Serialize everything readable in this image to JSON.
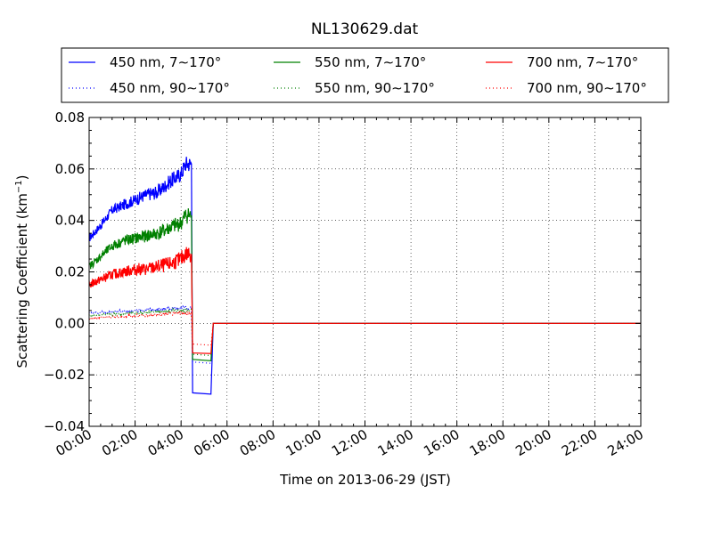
{
  "chart_data": {
    "type": "line",
    "title": "NL130629.dat",
    "xlabel": "Time on 2013-06-29 (JST)",
    "ylabel": "Scattering Coefficient (km",
    "ylabel_sup": "−1",
    "ylabel_end": ")",
    "xlim": [
      0,
      24
    ],
    "ylim": [
      -0.04,
      0.08
    ],
    "grid": true,
    "legend_position": "top",
    "x_ticks": [
      {
        "v": 0,
        "label": "00:00"
      },
      {
        "v": 2,
        "label": "02:00"
      },
      {
        "v": 4,
        "label": "04:00"
      },
      {
        "v": 6,
        "label": "06:00"
      },
      {
        "v": 8,
        "label": "08:00"
      },
      {
        "v": 10,
        "label": "10:00"
      },
      {
        "v": 12,
        "label": "12:00"
      },
      {
        "v": 14,
        "label": "14:00"
      },
      {
        "v": 16,
        "label": "16:00"
      },
      {
        "v": 18,
        "label": "18:00"
      },
      {
        "v": 20,
        "label": "20:00"
      },
      {
        "v": 22,
        "label": "22:00"
      },
      {
        "v": 24,
        "label": "24:00"
      }
    ],
    "y_ticks": [
      {
        "v": -0.04,
        "label": "−0.04"
      },
      {
        "v": -0.02,
        "label": "−0.02"
      },
      {
        "v": 0,
        "label": "0.00"
      },
      {
        "v": 0.02,
        "label": "0.02"
      },
      {
        "v": 0.04,
        "label": "0.04"
      },
      {
        "v": 0.06,
        "label": "0.06"
      },
      {
        "v": 0.08,
        "label": "0.08"
      }
    ],
    "series": [
      {
        "name": "450 nm, 7∼170°",
        "color": "#0000ff",
        "style": "solid",
        "x": [
          0,
          0.5,
          1,
          1.5,
          2,
          2.5,
          3,
          3.5,
          4,
          4.2,
          4.45,
          4.5,
          5.3,
          5.4,
          24
        ],
        "y": [
          0.033,
          0.038,
          0.044,
          0.046,
          0.048,
          0.05,
          0.051,
          0.055,
          0.058,
          0.062,
          0.062,
          -0.027,
          -0.0275,
          0.0,
          0.0
        ]
      },
      {
        "name": "450 nm, 90∼170°",
        "color": "#0000ff",
        "style": "dotted",
        "x": [
          0,
          1,
          2,
          3,
          4,
          4.45,
          4.5,
          5.3,
          5.4,
          24
        ],
        "y": [
          0.004,
          0.0045,
          0.005,
          0.0055,
          0.006,
          0.006,
          -0.015,
          -0.0155,
          0.0,
          0.0
        ]
      },
      {
        "name": "550 nm, 7∼170°",
        "color": "#008000",
        "style": "solid",
        "x": [
          0,
          0.5,
          1,
          1.5,
          2,
          2.5,
          3,
          3.5,
          4,
          4.2,
          4.45,
          4.5,
          5.3,
          5.4,
          24
        ],
        "y": [
          0.022,
          0.026,
          0.03,
          0.032,
          0.033,
          0.034,
          0.035,
          0.037,
          0.039,
          0.042,
          0.042,
          -0.014,
          -0.0145,
          0.0,
          0.0
        ]
      },
      {
        "name": "550 nm, 90∼170°",
        "color": "#008000",
        "style": "dotted",
        "x": [
          0,
          1,
          2,
          3,
          4,
          4.45,
          4.5,
          5.3,
          5.4,
          24
        ],
        "y": [
          0.003,
          0.0035,
          0.004,
          0.0045,
          0.005,
          0.005,
          -0.012,
          -0.0125,
          0.0,
          0.0
        ]
      },
      {
        "name": "700 nm, 7∼170°",
        "color": "#ff0000",
        "style": "solid",
        "x": [
          0,
          0.5,
          1,
          1.5,
          2,
          2.5,
          3,
          3.5,
          4,
          4.2,
          4.45,
          4.5,
          5.3,
          5.4,
          24
        ],
        "y": [
          0.015,
          0.017,
          0.019,
          0.02,
          0.021,
          0.021,
          0.022,
          0.023,
          0.025,
          0.027,
          0.027,
          -0.0115,
          -0.0117,
          0.0,
          0.0
        ]
      },
      {
        "name": "700 nm, 90∼170°",
        "color": "#ff0000",
        "style": "dotted",
        "x": [
          0,
          1,
          2,
          3,
          4,
          4.45,
          4.5,
          5.3,
          5.4,
          24
        ],
        "y": [
          0.002,
          0.0025,
          0.003,
          0.0035,
          0.004,
          0.004,
          -0.008,
          -0.0085,
          0.0,
          0.0
        ]
      }
    ]
  }
}
